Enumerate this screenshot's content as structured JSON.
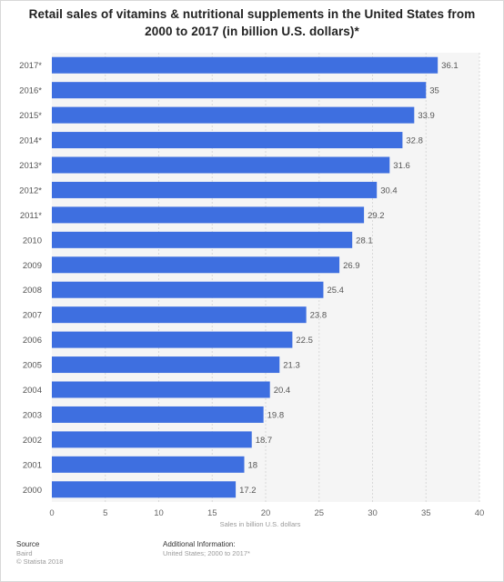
{
  "chart_data": {
    "type": "bar",
    "orientation": "horizontal",
    "title": "Retail sales of vitamins & nutritional supplements in the United States from 2000 to 2017 (in billion U.S. dollars)*",
    "categories": [
      "2017*",
      "2016*",
      "2015*",
      "2014*",
      "2013*",
      "2012*",
      "2011*",
      "2010",
      "2009",
      "2008",
      "2007",
      "2006",
      "2005",
      "2004",
      "2003",
      "2002",
      "2001",
      "2000"
    ],
    "values": [
      36.1,
      35,
      33.9,
      32.8,
      31.6,
      30.4,
      29.2,
      28.1,
      26.9,
      25.4,
      23.8,
      22.5,
      21.3,
      20.4,
      19.8,
      18.7,
      18,
      17.2
    ],
    "xlabel": "Sales in billion U.S. dollars",
    "ylabel": "",
    "xlim": [
      0,
      40
    ],
    "xticks": [
      0,
      5,
      10,
      15,
      20,
      25,
      30,
      35,
      40
    ],
    "grid": true,
    "bar_color": "#3e6fe0",
    "data_labels": true
  },
  "footer": {
    "source_heading": "Source",
    "source_lines": [
      "Baird",
      "© Statista 2018"
    ],
    "info_heading": "Additional Information:",
    "info_lines": [
      "United States; 2000 to 2017*"
    ]
  }
}
